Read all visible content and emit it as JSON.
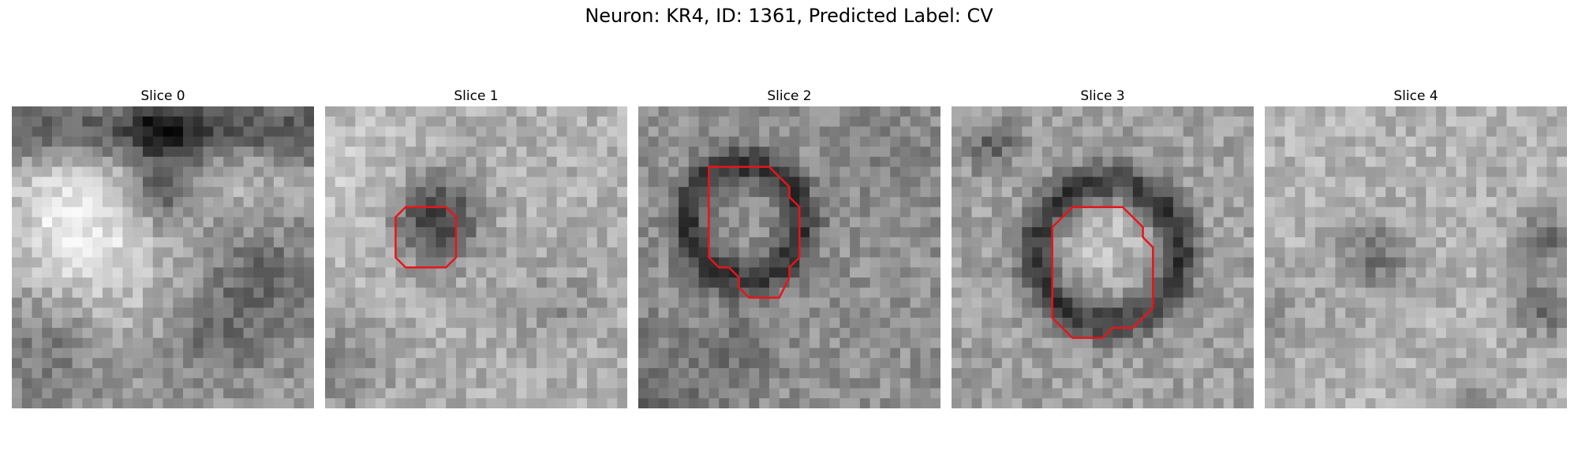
{
  "figure": {
    "title": "Neuron: KR4, ID: 1361, Predicted Label: CV",
    "contour_color": "#e8141a",
    "grid_size": 30,
    "colormap": "grayscale"
  },
  "panels": [
    {
      "title": "Slice 0"
    },
    {
      "title": "Slice 1"
    },
    {
      "title": "Slice 2"
    },
    {
      "title": "Slice 3"
    },
    {
      "title": "Slice 4"
    }
  ]
}
